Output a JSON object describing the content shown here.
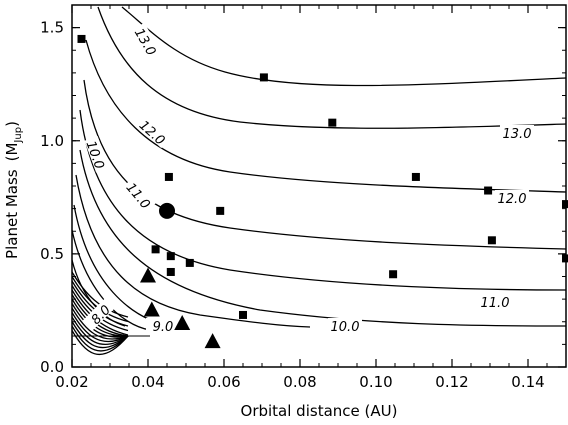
{
  "chart_data": {
    "type": "scatter",
    "xlabel": "Orbital distance (AU)",
    "ylabel": "Planet Mass",
    "ylabel_unit_base": "M",
    "ylabel_unit_sub": "Jup",
    "xlim": [
      0.02,
      0.15
    ],
    "ylim": [
      0.0,
      1.6
    ],
    "xticks": [
      0.02,
      0.04,
      0.06,
      0.08,
      0.1,
      0.12,
      0.14
    ],
    "xtick_labels": [
      "0.02",
      "0.04",
      "0.06",
      "0.08",
      "0.10",
      "0.12",
      "0.14"
    ],
    "yticks": [
      0.0,
      0.5,
      1.0,
      1.5
    ],
    "ytick_labels": [
      "0.0",
      "0.5",
      "1.0",
      "1.5"
    ],
    "grid": false,
    "contour_labels": [
      "13.0",
      "13.0",
      "12.0",
      "12.0",
      "11.0",
      "11.0",
      "10.0",
      "10.0",
      "9.0",
      "8.0"
    ],
    "series": [
      {
        "marker": "square",
        "points": [
          {
            "x": 0.0225,
            "y": 1.45
          },
          {
            "x": 0.0705,
            "y": 1.28
          },
          {
            "x": 0.0885,
            "y": 1.08
          },
          {
            "x": 0.0455,
            "y": 0.84
          },
          {
            "x": 0.1105,
            "y": 0.84
          },
          {
            "x": 0.1295,
            "y": 0.78
          },
          {
            "x": 0.15,
            "y": 0.72
          },
          {
            "x": 0.059,
            "y": 0.69
          },
          {
            "x": 0.042,
            "y": 0.52
          },
          {
            "x": 0.046,
            "y": 0.49
          },
          {
            "x": 0.051,
            "y": 0.46
          },
          {
            "x": 0.046,
            "y": 0.42
          },
          {
            "x": 0.1305,
            "y": 0.56
          },
          {
            "x": 0.15,
            "y": 0.48
          },
          {
            "x": 0.1045,
            "y": 0.41
          },
          {
            "x": 0.065,
            "y": 0.23
          }
        ]
      },
      {
        "marker": "triangle",
        "points": [
          {
            "x": 0.04,
            "y": 0.4
          },
          {
            "x": 0.041,
            "y": 0.25
          },
          {
            "x": 0.049,
            "y": 0.19
          },
          {
            "x": 0.057,
            "y": 0.11
          }
        ]
      },
      {
        "marker": "circle",
        "points": [
          {
            "x": 0.045,
            "y": 0.69
          }
        ]
      }
    ]
  }
}
